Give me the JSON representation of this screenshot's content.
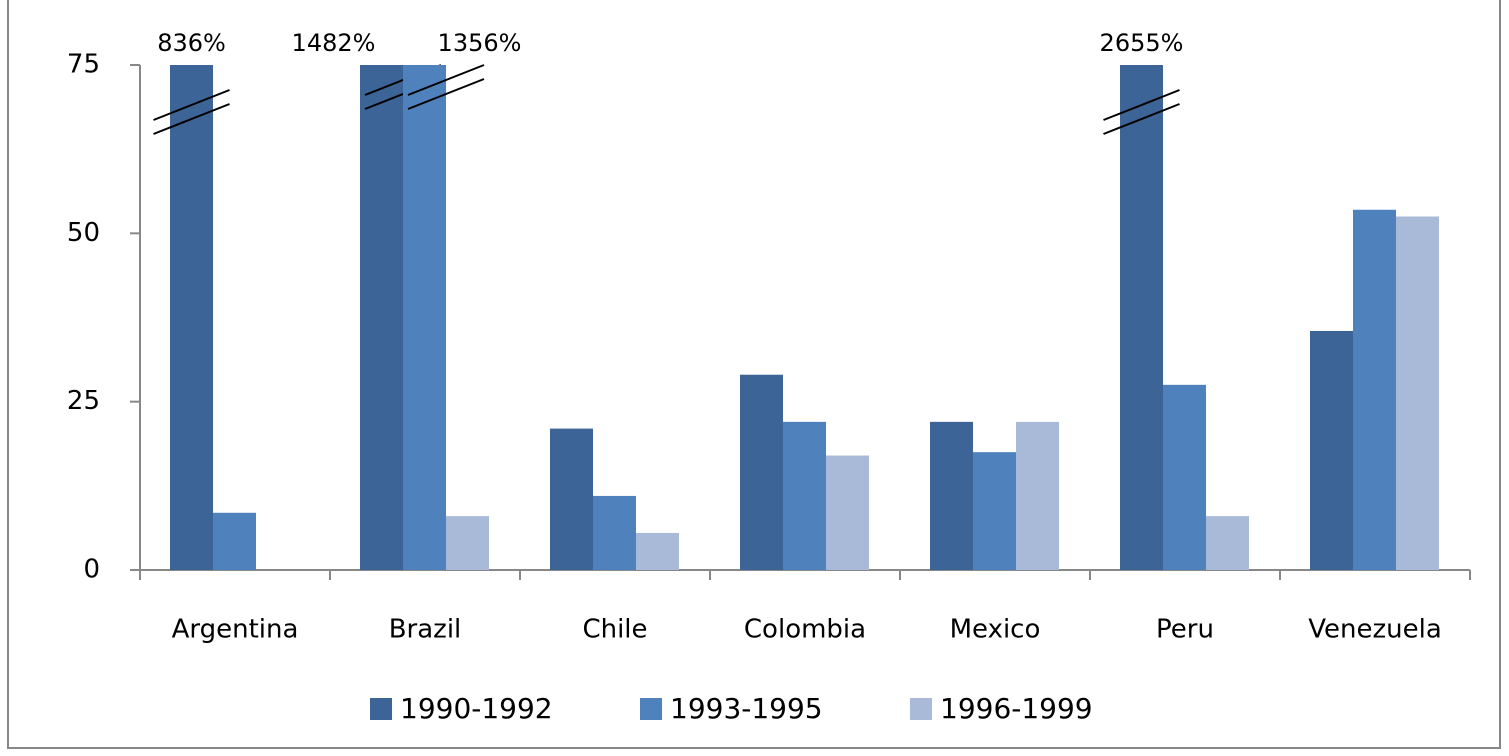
{
  "chart_data": {
    "type": "bar",
    "categories": [
      "Argentina",
      "Brazil",
      "Chile",
      "Colombia",
      "Mexico",
      "Peru",
      "Venezuela"
    ],
    "series": [
      {
        "name": "1990-1992",
        "color": "#3c6496",
        "values": [
          836,
          1482,
          21,
          29,
          22,
          2655,
          35.5
        ],
        "value_labels": [
          "836%",
          "1482%",
          null,
          null,
          null,
          "2655%",
          null
        ]
      },
      {
        "name": "1993-1995",
        "color": "#4f81bd",
        "values": [
          8.5,
          1356,
          11,
          22,
          17.5,
          27.5,
          53.5
        ],
        "value_labels": [
          null,
          "1356%",
          null,
          null,
          null,
          null,
          null
        ]
      },
      {
        "name": "1996-1999",
        "color": "#a9b9d8",
        "values": [
          null,
          8,
          5.5,
          17,
          22,
          8,
          52.5
        ]
      }
    ],
    "ylim": [
      0,
      75
    ],
    "yticks": [
      0,
      25,
      50,
      75
    ],
    "grid": false,
    "legend": "bottom"
  }
}
